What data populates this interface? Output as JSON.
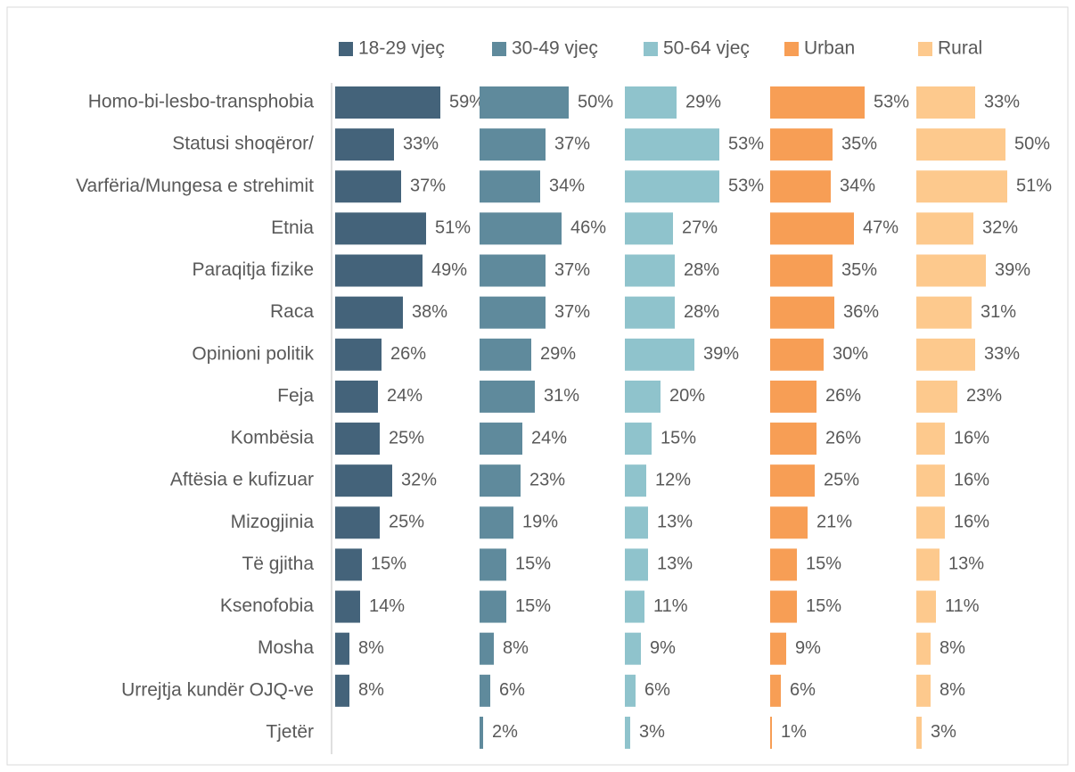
{
  "chart_data": {
    "type": "bar",
    "orientation": "horizontal",
    "categories": [
      "Homo-bi-lesbo-transphobia",
      "Statusi shoqëror/",
      "Varfëria/Mungesa e strehimit",
      "Etnia",
      "Paraqitja fizike",
      "Raca",
      "Opinioni politik",
      "Feja",
      "Kombësia",
      "Aftësia e kufizuar",
      "Mizogjinia",
      "Të gjitha",
      "Ksenofobia",
      "Mosha",
      "Urrejtja kundër OJQ-ve",
      "Tjetër"
    ],
    "series": [
      {
        "name": "18-29 vjeç",
        "color": "#44637a",
        "values": [
          59,
          33,
          37,
          51,
          49,
          38,
          26,
          24,
          25,
          32,
          25,
          15,
          14,
          8,
          8,
          null
        ],
        "value_labels": [
          "59%",
          "33%",
          "37%",
          "51%",
          "49%",
          "38%",
          "26%",
          "24%",
          "25%",
          "32%",
          "25%",
          "15%",
          "14%",
          "8%",
          "8%",
          null
        ]
      },
      {
        "name": "30-49 vjeç",
        "color": "#5f8a9c",
        "values": [
          50,
          37,
          34,
          46,
          37,
          37,
          29,
          31,
          24,
          23,
          19,
          15,
          15,
          8,
          6,
          2
        ],
        "value_labels": [
          "50%",
          "37%",
          "34%",
          "46%",
          "37%",
          "37%",
          "29%",
          "31%",
          "24%",
          "23%",
          "19%",
          "15%",
          "15%",
          "8%",
          "6%",
          "2%"
        ]
      },
      {
        "name": "50-64 vjeç",
        "color": "#8fc3cc",
        "values": [
          29,
          53,
          53,
          27,
          28,
          28,
          39,
          20,
          15,
          12,
          13,
          13,
          11,
          9,
          6,
          3
        ],
        "value_labels": [
          "29%",
          "53%",
          "53%",
          "27%",
          "28%",
          "28%",
          "39%",
          "20%",
          "15%",
          "12%",
          "13%",
          "13%",
          "11%",
          "9%",
          "6%",
          "3%"
        ]
      },
      {
        "name": "Urban",
        "color": "#f79e55",
        "values": [
          53,
          35,
          34,
          47,
          35,
          36,
          30,
          26,
          26,
          25,
          21,
          15,
          15,
          9,
          6,
          1
        ],
        "value_labels": [
          "53%",
          "35%",
          "34%",
          "47%",
          "35%",
          "36%",
          "30%",
          "26%",
          "26%",
          "25%",
          "21%",
          "15%",
          "15%",
          "9%",
          "6%",
          "1%"
        ]
      },
      {
        "name": "Rural",
        "color": "#fdc98d",
        "values": [
          33,
          50,
          51,
          32,
          39,
          31,
          33,
          23,
          16,
          16,
          16,
          13,
          11,
          8,
          8,
          3
        ],
        "value_labels": [
          "33%",
          "50%",
          "51%",
          "32%",
          "39%",
          "31%",
          "33%",
          "23%",
          "16%",
          "16%",
          "16%",
          "13%",
          "11%",
          "8%",
          "8%",
          "3%"
        ]
      }
    ],
    "legend": "top"
  }
}
